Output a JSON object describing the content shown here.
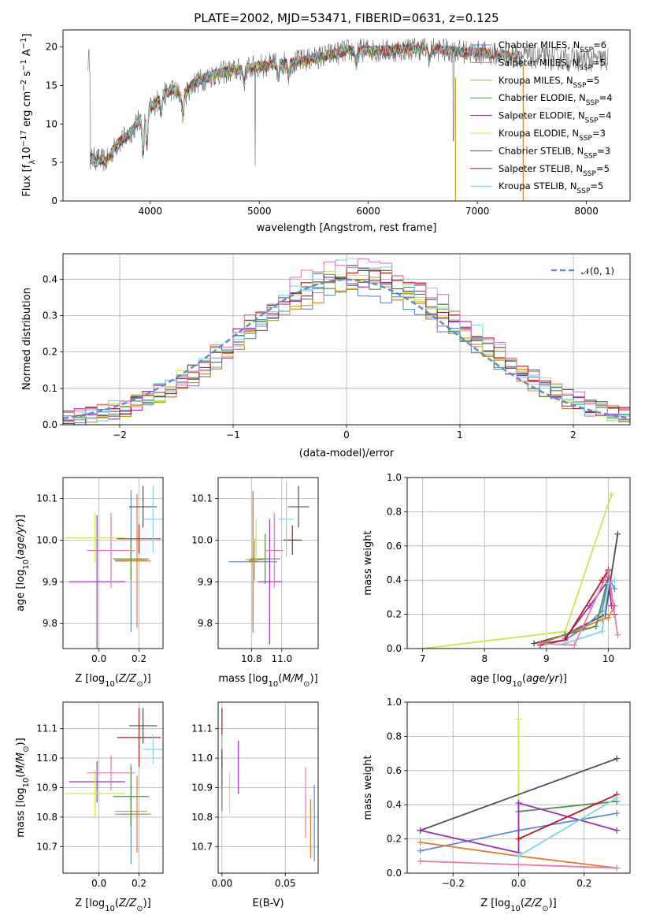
{
  "figure_title": "PLATE=2002, MJD=53471, FIBERID=0631, z=0.125",
  "colors": {
    "chabrier_miles": "#5b8bd9",
    "salpeter_miles": "#e07b2c",
    "kroupa_miles": "#c8a020",
    "chabrier_elodie": "#4e8f4e",
    "salpeter_elodie": "#9b30b4",
    "kroupa_elodie": "#cde650",
    "chabrier_stelib": "#4d4d4d",
    "salpeter_stelib": "#b31b1b",
    "kroupa_stelib": "#7fd6e0",
    "pink": "#e87ab6",
    "normal_curve": "#5b8bd9",
    "data_spectrum": "#666666"
  },
  "chart_data": [
    {
      "type": "line",
      "id": "spectrum",
      "xlabel": "wavelength [Angstrom, rest frame]",
      "ylabel": "Flux [f_λ10^-17 erg cm^-2 s^-1 A^-1]",
      "xlim": [
        3200,
        8400
      ],
      "ylim": [
        0,
        22.2
      ],
      "xticks": [
        4000,
        5000,
        6000,
        7000,
        8000
      ],
      "yticks": [
        0,
        5,
        10,
        15,
        20
      ],
      "grid": false,
      "legend_position": "upper right",
      "continuum": [
        [
          3450,
          5.5
        ],
        [
          3600,
          5.2
        ],
        [
          3700,
          7.5
        ],
        [
          3800,
          8.5
        ],
        [
          3900,
          10.5
        ],
        [
          4000,
          12
        ],
        [
          4100,
          13.5
        ],
        [
          4200,
          14.5
        ],
        [
          4300,
          13.5
        ],
        [
          4400,
          15.3
        ],
        [
          4600,
          16.5
        ],
        [
          4800,
          17.0
        ],
        [
          5000,
          17.5
        ],
        [
          5200,
          17.8
        ],
        [
          5400,
          18.2
        ],
        [
          5600,
          18.8
        ],
        [
          5800,
          19.5
        ],
        [
          6000,
          19.6
        ],
        [
          6200,
          19.5
        ],
        [
          6400,
          19.8
        ],
        [
          6600,
          19.7
        ],
        [
          6800,
          19.4
        ],
        [
          7000,
          19.3
        ],
        [
          7200,
          19.0
        ],
        [
          7400,
          18.8
        ],
        [
          7600,
          18.6
        ],
        [
          7800,
          18.4
        ],
        [
          8000,
          18.3
        ],
        [
          8200,
          18.3
        ]
      ],
      "series": [
        {
          "name": "Chabrier MILES, N_SSP=6",
          "sub": "SSP",
          "n": "6",
          "color_key": "chabrier_miles"
        },
        {
          "name": "Salpeter MILES, N_SSP=5",
          "sub": "SSP",
          "n": "5",
          "color_key": "salpeter_miles"
        },
        {
          "name": "Kroupa MILES, N_SSP=5",
          "sub": "SSP",
          "n": "5",
          "color_key": "kroupa_miles"
        },
        {
          "name": "Chabrier ELODIE, N_SSP=4",
          "sub": "SSP",
          "n": "4",
          "color_key": "chabrier_elodie"
        },
        {
          "name": "Salpeter ELODIE, N_SSP=4",
          "sub": "SSP",
          "n": "4",
          "color_key": "salpeter_elodie"
        },
        {
          "name": "Kroupa ELODIE, N_SSP=3",
          "sub": "SSP",
          "n": "3",
          "color_key": "kroupa_elodie"
        },
        {
          "name": "Chabrier STELIB, N_SSP=3",
          "sub": "SSP",
          "n": "3",
          "color_key": "chabrier_stelib"
        },
        {
          "name": "Salpeter STELIB, N_SSP=5",
          "sub": "SSP",
          "n": "5",
          "color_key": "salpeter_stelib"
        },
        {
          "name": "Kroupa STELIB, N_SSP=5",
          "sub": "SSP",
          "n": "5",
          "color_key": "kroupa_stelib"
        }
      ]
    },
    {
      "type": "line",
      "id": "residuals",
      "xlabel": "(data-model)/error",
      "ylabel": "Normed distribution",
      "xlim": [
        -2.5,
        2.5
      ],
      "ylim": [
        0,
        0.47
      ],
      "xticks": [
        -2,
        -1,
        0,
        1,
        2
      ],
      "yticks": [
        0.0,
        0.1,
        0.2,
        0.3,
        0.4
      ],
      "grid": true,
      "legend_position": "upper right",
      "legend": "𝒩(0, 1)",
      "normal": {
        "mean": 0,
        "std": 1
      },
      "bin_width": 0.1,
      "series_colors": [
        "chabrier_miles",
        "salpeter_miles",
        "kroupa_miles",
        "chabrier_elodie",
        "salpeter_elodie",
        "kroupa_elodie",
        "chabrier_stelib",
        "salpeter_stelib",
        "kroupa_stelib",
        "pink"
      ]
    },
    {
      "type": "scatter",
      "id": "age_vs_Z",
      "xlabel": "Z [log10(Z/Z⊙)]",
      "ylabel": "age [log10(age/yr)]",
      "xlim": [
        -0.18,
        0.32
      ],
      "ylim": [
        9.74,
        10.15
      ],
      "xticks": [
        0.0,
        0.2
      ],
      "yticks": [
        9.8,
        9.9,
        10.0,
        10.1
      ],
      "grid": true,
      "points": [
        {
          "color_key": "chabrier_miles",
          "x": 0.16,
          "xerr": 0.08,
          "y": 9.95,
          "yerr": 0.17
        },
        {
          "color_key": "salpeter_miles",
          "x": 0.19,
          "xerr": 0.07,
          "y": 9.95,
          "yerr": 0.16
        },
        {
          "color_key": "kroupa_miles",
          "x": 0.16,
          "xerr": 0.08,
          "y": 9.952,
          "yerr": 0.05
        },
        {
          "color_key": "chabrier_elodie",
          "x": 0.16,
          "xerr": 0.09,
          "y": 9.955,
          "yerr": 0.05
        },
        {
          "color_key": "salpeter_elodie",
          "x": -0.01,
          "xerr": 0.14,
          "y": 9.9,
          "yerr": 0.16
        },
        {
          "color_key": "kroupa_elodie",
          "x": -0.02,
          "xerr": 0.15,
          "y": 10.005,
          "yerr": 0.06
        },
        {
          "color_key": "chabrier_stelib",
          "x": 0.22,
          "xerr": 0.07,
          "y": 10.08,
          "yerr": 0.05
        },
        {
          "color_key": "salpeter_stelib",
          "x": 0.2,
          "xerr": 0.11,
          "y": 10.003,
          "yerr": 0.035
        },
        {
          "color_key": "kroupa_stelib",
          "x": 0.27,
          "xerr": 0.05,
          "y": 10.05,
          "yerr": 0.08
        },
        {
          "color_key": "pink",
          "x": 0.06,
          "xerr": 0.12,
          "y": 9.975,
          "yerr": 0.09
        }
      ]
    },
    {
      "type": "scatter",
      "id": "age_vs_mass",
      "xlabel": "mass [log10(M/M⊙)]",
      "ylabel": "",
      "xlim": [
        10.58,
        11.24
      ],
      "ylim": [
        9.74,
        10.15
      ],
      "xticks": [
        10.8,
        11.0
      ],
      "yticks": [
        9.8,
        9.9,
        10.0,
        10.1
      ],
      "grid": true,
      "points": [
        {
          "color_key": "chabrier_miles",
          "x": 10.81,
          "xerr": 0.16,
          "y": 9.948,
          "yerr": 0.17
        },
        {
          "color_key": "salpeter_miles",
          "x": 10.81,
          "xerr": 0.03,
          "y": 9.95,
          "yerr": 0.16
        },
        {
          "color_key": "kroupa_miles",
          "x": 10.82,
          "xerr": 0.06,
          "y": 9.953,
          "yerr": 0.05
        },
        {
          "color_key": "chabrier_elodie",
          "x": 10.89,
          "xerr": 0.1,
          "y": 9.955,
          "yerr": 0.06
        },
        {
          "color_key": "salpeter_elodie",
          "x": 10.92,
          "xerr": 0.08,
          "y": 9.9,
          "yerr": 0.15
        },
        {
          "color_key": "kroupa_elodie",
          "x": 10.83,
          "xerr": 0.05,
          "y": 10.0,
          "yerr": 0.05
        },
        {
          "color_key": "chabrier_stelib",
          "x": 11.11,
          "xerr": 0.07,
          "y": 10.08,
          "yerr": 0.05
        },
        {
          "color_key": "salpeter_stelib",
          "x": 11.07,
          "xerr": 0.06,
          "y": 10.0,
          "yerr": 0.035
        },
        {
          "color_key": "kroupa_stelib",
          "x": 11.03,
          "xerr": 0.05,
          "y": 10.05,
          "yerr": 0.09
        },
        {
          "color_key": "pink",
          "x": 10.95,
          "xerr": 0.06,
          "y": 9.975,
          "yerr": 0.09
        }
      ]
    },
    {
      "type": "line",
      "id": "weight_vs_age",
      "xlabel": "age [log10(age/yr)]",
      "ylabel": "mass weight",
      "xlim": [
        6.75,
        10.35
      ],
      "ylim": [
        0,
        1.0
      ],
      "xticks": [
        7,
        8,
        9,
        10
      ],
      "yticks": [
        0.0,
        0.2,
        0.4,
        0.6,
        0.8,
        1.0
      ],
      "grid": true,
      "series": [
        {
          "color_key": "kroupa_elodie",
          "points": [
            [
              7.0,
              0.0
            ],
            [
              9.3,
              0.1
            ],
            [
              10.05,
              0.9
            ]
          ]
        },
        {
          "color_key": "chabrier_stelib",
          "points": [
            [
              8.8,
              0.03
            ],
            [
              9.3,
              0.08
            ],
            [
              9.95,
              0.2
            ],
            [
              10.15,
              0.67
            ]
          ]
        },
        {
          "color_key": "chabrier_miles",
          "points": [
            [
              8.9,
              0.03
            ],
            [
              9.3,
              0.05
            ],
            [
              9.6,
              0.12
            ],
            [
              9.9,
              0.22
            ],
            [
              10.0,
              0.42
            ],
            [
              10.1,
              0.35
            ]
          ]
        },
        {
          "color_key": "salpeter_miles",
          "points": [
            [
              8.9,
              0.03
            ],
            [
              9.3,
              0.08
            ],
            [
              9.9,
              0.17
            ],
            [
              10.0,
              0.18
            ],
            [
              10.1,
              0.25
            ]
          ]
        },
        {
          "color_key": "chabrier_elodie",
          "points": [
            [
              9.3,
              0.08
            ],
            [
              9.8,
              0.13
            ],
            [
              10.0,
              0.42
            ]
          ]
        },
        {
          "color_key": "salpeter_elodie",
          "points": [
            [
              9.3,
              0.06
            ],
            [
              9.7,
              0.25
            ],
            [
              10.0,
              0.4
            ],
            [
              10.05,
              0.25
            ]
          ]
        },
        {
          "color_key": "salpeter_stelib",
          "points": [
            [
              8.9,
              0.02
            ],
            [
              9.3,
              0.05
            ],
            [
              9.9,
              0.4
            ],
            [
              10.0,
              0.46
            ],
            [
              10.1,
              0.2
            ]
          ]
        },
        {
          "color_key": "kroupa_stelib",
          "points": [
            [
              9.3,
              0.03
            ],
            [
              9.9,
              0.1
            ],
            [
              10.0,
              0.38
            ],
            [
              10.1,
              0.4
            ]
          ]
        },
        {
          "color_key": "pink",
          "points": [
            [
              8.9,
              0.03
            ],
            [
              9.45,
              0.02
            ],
            [
              10.0,
              0.45
            ],
            [
              10.15,
              0.08
            ]
          ]
        }
      ]
    },
    {
      "type": "scatter",
      "id": "mass_vs_Z",
      "xlabel": "Z [log10(Z/Z⊙)]",
      "ylabel": "mass [log10(M/M⊙)]",
      "xlim": [
        -0.18,
        0.32
      ],
      "ylim": [
        10.61,
        11.19
      ],
      "xticks": [
        0.0,
        0.2
      ],
      "yticks": [
        10.7,
        10.8,
        10.9,
        11.0,
        11.1
      ],
      "grid": true,
      "points": [
        {
          "color_key": "chabrier_miles",
          "x": 0.16,
          "xerr": 0.08,
          "y": 10.81,
          "yerr": 0.17
        },
        {
          "color_key": "salpeter_miles",
          "x": 0.19,
          "xerr": 0.07,
          "y": 10.81,
          "yerr": 0.13
        },
        {
          "color_key": "kroupa_miles",
          "x": 0.16,
          "xerr": 0.08,
          "y": 10.82,
          "yerr": 0.05
        },
        {
          "color_key": "chabrier_elodie",
          "x": 0.16,
          "xerr": 0.09,
          "y": 10.87,
          "yerr": 0.1
        },
        {
          "color_key": "salpeter_elodie",
          "x": -0.01,
          "xerr": 0.14,
          "y": 10.92,
          "yerr": 0.07
        },
        {
          "color_key": "kroupa_elodie",
          "x": -0.02,
          "xerr": 0.15,
          "y": 10.88,
          "yerr": 0.08
        },
        {
          "color_key": "chabrier_stelib",
          "x": 0.22,
          "xerr": 0.07,
          "y": 11.11,
          "yerr": 0.06
        },
        {
          "color_key": "salpeter_stelib",
          "x": 0.2,
          "xerr": 0.11,
          "y": 11.07,
          "yerr": 0.1
        },
        {
          "color_key": "kroupa_stelib",
          "x": 0.27,
          "xerr": 0.05,
          "y": 11.03,
          "yerr": 0.05
        },
        {
          "color_key": "pink",
          "x": 0.06,
          "xerr": 0.12,
          "y": 10.95,
          "yerr": 0.06
        }
      ]
    },
    {
      "type": "scatter",
      "id": "mass_vs_ebv",
      "xlabel": "E(B-V)",
      "ylabel": "",
      "xlim": [
        -0.003,
        0.076
      ],
      "ylim": [
        10.61,
        11.19
      ],
      "xticks": [
        0.0,
        0.05
      ],
      "yticks": [
        10.7,
        10.8,
        10.9,
        11.0,
        11.1
      ],
      "grid": true,
      "points": [
        {
          "color_key": "salpeter_stelib",
          "x": 0.0,
          "y": 11.07,
          "yerr": 0.1
        },
        {
          "color_key": "kroupa_stelib",
          "x": 0.0,
          "y": 11.03,
          "yerr": 0.05
        },
        {
          "color_key": "chabrier_elodie",
          "x": 0.0,
          "y": 10.87,
          "yerr": 0.05
        },
        {
          "color_key": "chabrier_stelib",
          "x": 0.0,
          "y": 10.97,
          "yerr": 0.06
        },
        {
          "color_key": "kroupa_elodie",
          "x": 0.006,
          "y": 10.88,
          "yerr": 0.07
        },
        {
          "color_key": "salpeter_elodie",
          "x": 0.013,
          "y": 10.97,
          "yerr": 0.09
        },
        {
          "color_key": "pink",
          "x": 0.066,
          "y": 10.85,
          "yerr": 0.12
        },
        {
          "color_key": "salpeter_miles",
          "x": 0.07,
          "y": 10.76,
          "yerr": 0.1
        },
        {
          "color_key": "chabrier_miles",
          "x": 0.073,
          "y": 10.78,
          "yerr": 0.13
        }
      ]
    },
    {
      "type": "line",
      "id": "weight_vs_Z",
      "xlabel": "Z [log10(Z/Z⊙)]",
      "ylabel": "mass weight",
      "xlim": [
        -0.34,
        0.34
      ],
      "ylim": [
        0,
        1.0
      ],
      "xticks": [
        -0.2,
        0.0,
        0.2
      ],
      "yticks": [
        0.0,
        0.2,
        0.4,
        0.6,
        0.8,
        1.0
      ],
      "grid": true,
      "series": [
        {
          "color_key": "kroupa_elodie",
          "points": [
            [
              0.0,
              0.9
            ],
            [
              0.0,
              0.1
            ]
          ]
        },
        {
          "color_key": "chabrier_stelib",
          "points": [
            [
              -0.3,
              0.25
            ],
            [
              0.3,
              0.67
            ]
          ]
        },
        {
          "color_key": "chabrier_miles",
          "points": [
            [
              -0.3,
              0.13
            ],
            [
              0.0,
              0.25
            ],
            [
              0.3,
              0.35
            ]
          ]
        },
        {
          "color_key": "salpeter_miles",
          "points": [
            [
              -0.3,
              0.18
            ],
            [
              0.0,
              0.1
            ],
            [
              0.3,
              0.03
            ]
          ]
        },
        {
          "color_key": "chabrier_elodie",
          "points": [
            [
              0.0,
              0.36
            ],
            [
              0.3,
              0.42
            ]
          ]
        },
        {
          "color_key": "salpeter_elodie",
          "points": [
            [
              -0.3,
              0.25
            ],
            [
              0.0,
              0.12
            ],
            [
              0.0,
              0.41
            ],
            [
              0.3,
              0.25
            ]
          ]
        },
        {
          "color_key": "salpeter_stelib",
          "points": [
            [
              0.0,
              0.2
            ],
            [
              0.3,
              0.46
            ]
          ]
        },
        {
          "color_key": "kroupa_stelib",
          "points": [
            [
              0.0,
              0.1
            ],
            [
              0.3,
              0.44
            ]
          ]
        },
        {
          "color_key": "pink",
          "points": [
            [
              -0.3,
              0.07
            ],
            [
              0.0,
              0.05
            ],
            [
              0.3,
              0.03
            ]
          ]
        }
      ]
    }
  ]
}
